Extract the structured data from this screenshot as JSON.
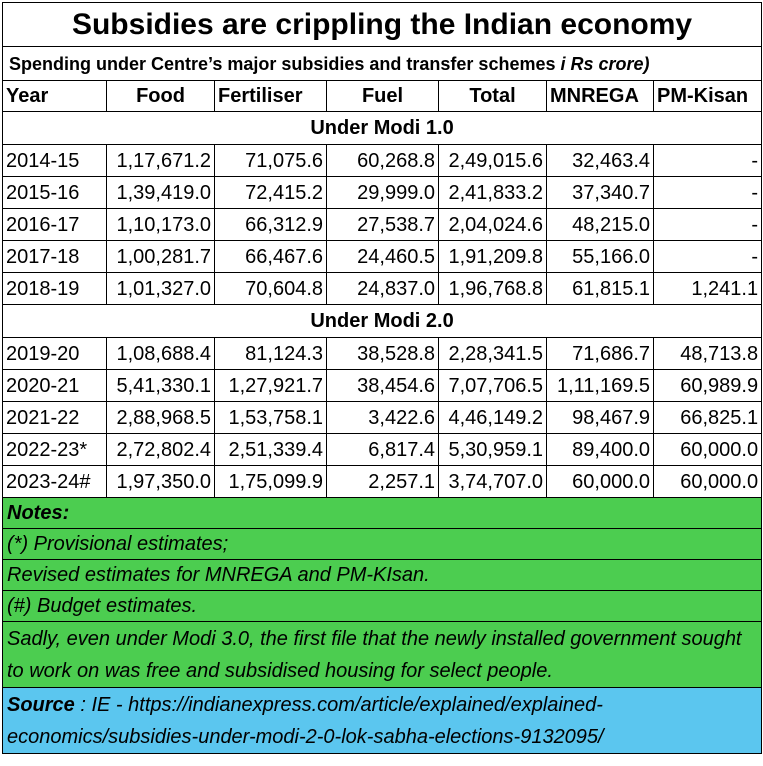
{
  "title": "Subsidies are crippling the Indian economy",
  "subtitle": "Spending under Centre’s major subsidies and transfer schemes ",
  "subtitle_unit": "i Rs crore)",
  "headers": [
    "Year",
    "Food",
    "Fertiliser",
    "Fuel",
    "Total",
    "MNREGA",
    "PM-Kisan"
  ],
  "section1": "Under Modi 1.0",
  "rows1": [
    [
      "2014-15",
      "1,17,671.2",
      "71,075.6",
      "60,268.8",
      "2,49,015.6",
      "32,463.4",
      "-"
    ],
    [
      "2015-16",
      "1,39,419.0",
      "72,415.2",
      "29,999.0",
      "2,41,833.2",
      "37,340.7",
      "-"
    ],
    [
      "2016-17",
      "1,10,173.0",
      "66,312.9",
      "27,538.7",
      "2,04,024.6",
      "48,215.0",
      "-"
    ],
    [
      "2017-18",
      "1,00,281.7",
      "66,467.6",
      "24,460.5",
      "1,91,209.8",
      "55,166.0",
      "-"
    ],
    [
      "2018-19",
      "1,01,327.0",
      "70,604.8",
      "24,837.0",
      "1,96,768.8",
      "61,815.1",
      "1,241.1"
    ]
  ],
  "section2": "Under Modi 2.0",
  "rows2": [
    [
      "2019-20",
      "1,08,688.4",
      "81,124.3",
      "38,528.8",
      "2,28,341.5",
      "71,686.7",
      "48,713.8"
    ],
    [
      "2020-21",
      "5,41,330.1",
      "1,27,921.7",
      "38,454.6",
      "7,07,706.5",
      "1,11,169.5",
      "60,989.9"
    ],
    [
      "2021-22",
      "2,88,968.5",
      "1,53,758.1",
      "3,422.6",
      "4,46,149.2",
      "98,467.9",
      "66,825.1"
    ],
    [
      "2022-23*",
      "2,72,802.4",
      "2,51,339.4",
      "6,817.4",
      "5,30,959.1",
      "89,400.0",
      "60,000.0"
    ],
    [
      "2023-24#",
      "1,97,350.0",
      "1,75,099.9",
      "2,257.1",
      "3,74,707.0",
      "60,000.0",
      "60,000.0"
    ]
  ],
  "notes": {
    "heading": "Notes:",
    "provisional": "(*) Provisional estimates;",
    "revised": "Revised estimates for MNREGA and PM-KIsan.",
    "budget": "(#) Budget estimates.",
    "comment": "Sadly, even under Modi 3.0, the first file that the newly installed government sought to work on was free and subsidised housing for select people."
  },
  "source": {
    "label": "Source",
    "text": " : IE - https://indianexpress.com/article/explained/explained-economics/subsidies-under-modi-2-0-lok-sabha-elections-9132095/"
  },
  "colors": {
    "notes_bg": "#4ccd50",
    "source_bg": "#5bc6ef"
  }
}
